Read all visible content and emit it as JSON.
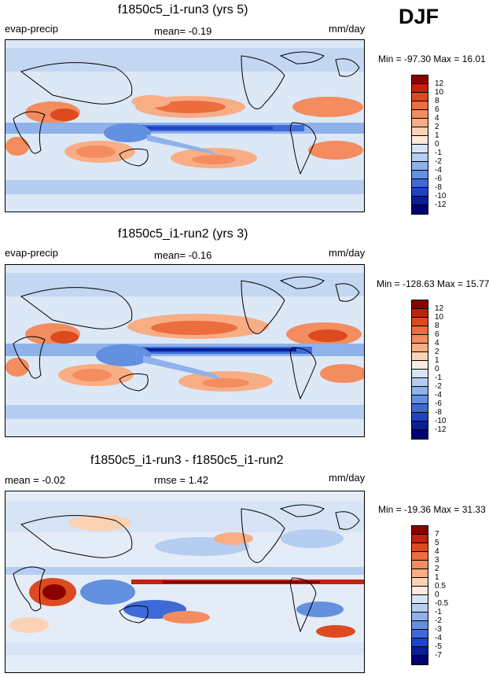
{
  "season": "DJF",
  "panels": [
    {
      "title": "f1850c5_i1-run3 (yrs 5)",
      "left": "evap-precip",
      "center": "mean=  -0.19",
      "units": "mm/day",
      "minmax": "Min = -97.30 Max =  16.01",
      "levels": [
        "12",
        "10",
        "8",
        "6",
        "4",
        "2",
        "1",
        "0",
        "-1",
        "-2",
        "-4",
        "-6",
        "-8",
        "-10",
        "-12"
      ],
      "colors": [
        "#8b0000",
        "#c4200f",
        "#dd4a20",
        "#ec6d3e",
        "#f38c5e",
        "#f8ad85",
        "#fcd2b4",
        "#fdeadc",
        "#d6e4f6",
        "#b4cdf0",
        "#8fb2ea",
        "#6490e0",
        "#3d6ad8",
        "#2042c4",
        "#0a1e9a",
        "#000070"
      ]
    },
    {
      "title": "f1850c5_i1-run2 (yrs 3)",
      "left": "evap-precip",
      "center": "mean=  -0.16",
      "units": "mm/day",
      "minmax": "Min = -128.63 Max =  15.77",
      "levels": [
        "12",
        "10",
        "8",
        "6",
        "4",
        "2",
        "1",
        "0",
        "-1",
        "-2",
        "-4",
        "-6",
        "-8",
        "-10",
        "-12"
      ],
      "colors": [
        "#8b0000",
        "#c4200f",
        "#dd4a20",
        "#ec6d3e",
        "#f38c5e",
        "#f8ad85",
        "#fcd2b4",
        "#fdeadc",
        "#d6e4f6",
        "#b4cdf0",
        "#8fb2ea",
        "#6490e0",
        "#3d6ad8",
        "#2042c4",
        "#0a1e9a",
        "#000070"
      ]
    },
    {
      "title": "f1850c5_i1-run3 - f1850c5_i1-run2",
      "left": "mean =  -0.02",
      "center": "rmse =   1.42",
      "units": "mm/day",
      "minmax": "Min = -19.36 Max =  31.33",
      "levels": [
        "7",
        "5",
        "4",
        "3",
        "2",
        "1",
        "0.5",
        "0",
        "-0.5",
        "-1",
        "-2",
        "-3",
        "-4",
        "-5",
        "-7"
      ],
      "colors": [
        "#8b0000",
        "#c4200f",
        "#dd4a20",
        "#ec6d3e",
        "#f38c5e",
        "#f8ad85",
        "#fcd2b4",
        "#fdeadc",
        "#d6e4f6",
        "#b4cdf0",
        "#8fb2ea",
        "#6490e0",
        "#3d6ad8",
        "#2042c4",
        "#0a1e9a",
        "#000070"
      ]
    }
  ]
}
